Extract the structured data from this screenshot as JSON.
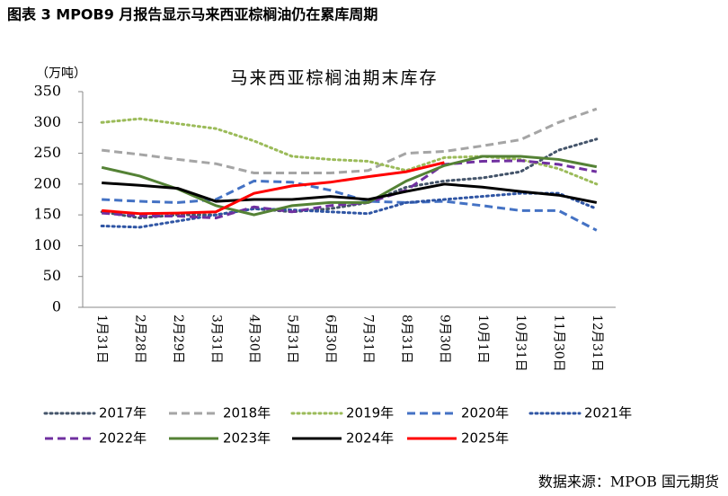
{
  "chart_data": {
    "type": "line",
    "figure_title": "图表 3 MPOB9 月报告显示马来西亚棕榈油仍在累库周期",
    "title": "马来西亚棕榈油期末库存",
    "y_label": "（万吨）",
    "source": "数据来源：MPOB 国元期货",
    "categories": [
      "1月31日",
      "2月28日",
      "2月29日",
      "3月31日",
      "4月30日",
      "5月31日",
      "6月30日",
      "7月31日",
      "8月31日",
      "9月30日",
      "10月1日",
      "10月31日",
      "11月30日",
      "12月31日"
    ],
    "ylim": [
      0,
      350
    ],
    "yticks": [
      0,
      50,
      100,
      150,
      200,
      250,
      300,
      350
    ],
    "grid": false,
    "series": [
      {
        "name": "2017年",
        "color": "#44546a",
        "dash": "dotted",
        "values": [
          155,
          145,
          150,
          150,
          160,
          155,
          160,
          170,
          195,
          205,
          210,
          220,
          255,
          273
        ]
      },
      {
        "name": "2018年",
        "color": "#a5a5a5",
        "dash": "dashed",
        "values": [
          255,
          248,
          240,
          233,
          218,
          218,
          218,
          222,
          250,
          253,
          262,
          272,
          300,
          322
        ]
      },
      {
        "name": "2019年",
        "color": "#9bbb59",
        "dash": "dotted",
        "values": [
          300,
          306,
          298,
          290,
          270,
          245,
          240,
          237,
          222,
          243,
          245,
          240,
          225,
          200
        ]
      },
      {
        "name": "2020年",
        "color": "#4472c4",
        "dash": "dashed",
        "values": [
          175,
          172,
          170,
          175,
          205,
          203,
          190,
          172,
          170,
          172,
          165,
          157,
          157,
          125
        ]
      },
      {
        "name": "2021年",
        "color": "#2f55a4",
        "dash": "dotted",
        "values": [
          132,
          130,
          140,
          150,
          160,
          158,
          155,
          152,
          170,
          175,
          180,
          185,
          185,
          160
        ]
      },
      {
        "name": "2022年",
        "color": "#7030a0",
        "dash": "dashed",
        "values": [
          153,
          148,
          148,
          145,
          163,
          155,
          165,
          170,
          190,
          232,
          237,
          238,
          232,
          220
        ]
      },
      {
        "name": "2023年",
        "color": "#548235",
        "dash": "solid",
        "values": [
          227,
          213,
          192,
          165,
          150,
          165,
          170,
          170,
          205,
          230,
          245,
          245,
          240,
          228
        ]
      },
      {
        "name": "2024年",
        "color": "#000000",
        "dash": "solid",
        "values": [
          202,
          198,
          193,
          172,
          175,
          175,
          180,
          175,
          188,
          200,
          195,
          188,
          182,
          170
        ]
      },
      {
        "name": "2025年",
        "color": "#ff0000",
        "dash": "solid",
        "values": [
          157,
          152,
          153,
          155,
          185,
          197,
          203,
          212,
          220,
          235,
          null,
          null,
          null,
          null
        ]
      }
    ]
  }
}
